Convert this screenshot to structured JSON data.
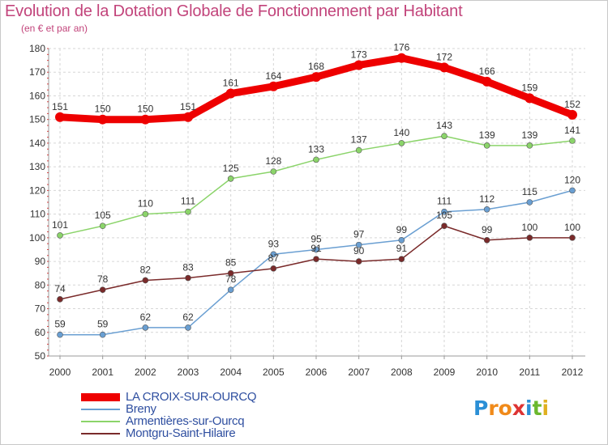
{
  "header": {
    "title": "Evolution de la Dotation Globale de Fonctionnement par Habitant",
    "subtitle": "(en € et par an)"
  },
  "logo": {
    "letters": [
      "P",
      "r",
      "o",
      "x",
      "i",
      "t",
      "i"
    ],
    "colors": [
      "#2b8fd6",
      "#f08a1a",
      "#f08a1a",
      "#d33",
      "#2b8fd6",
      "#6bb82e",
      "#e0b020"
    ]
  },
  "chart_data": {
    "type": "line",
    "x": [
      2000,
      2001,
      2002,
      2003,
      2004,
      2005,
      2006,
      2007,
      2008,
      2009,
      2010,
      2011,
      2012
    ],
    "xlabel": "",
    "ylabel": "",
    "ylim": [
      50,
      180
    ],
    "yticks": [
      50,
      60,
      70,
      80,
      90,
      100,
      110,
      120,
      130,
      140,
      150,
      160,
      170,
      180
    ],
    "grid": "horizontal dashed",
    "legend": "bottom-left",
    "series": [
      {
        "name": "LA CROIX-SUR-OURCQ",
        "color": "#ee0000",
        "values": [
          151,
          150,
          150,
          151,
          161,
          164,
          168,
          173,
          176,
          172,
          166,
          159,
          152
        ]
      },
      {
        "name": "Breny",
        "color": "#6a9fd2",
        "values": [
          59,
          59,
          62,
          62,
          78,
          93,
          95,
          97,
          99,
          111,
          112,
          115,
          120
        ]
      },
      {
        "name": "Armentières-sur-Ourcq",
        "color": "#8bd46a",
        "values": [
          101,
          105,
          110,
          111,
          125,
          128,
          133,
          137,
          140,
          143,
          139,
          139,
          141
        ]
      },
      {
        "name": "Montgru-Saint-Hilaire",
        "color": "#7a2a2a",
        "values": [
          74,
          78,
          82,
          83,
          85,
          87,
          91,
          90,
          91,
          105,
          99,
          100,
          100
        ]
      }
    ],
    "point_labels": [
      [
        "151",
        "150",
        "150",
        "151",
        "161",
        "164",
        "168",
        "173",
        "176",
        "172",
        "166",
        "159",
        "152"
      ],
      [
        "59",
        "59",
        "62",
        "62",
        "78",
        "93",
        "95",
        "97",
        "99",
        "111",
        "112",
        "115",
        "120"
      ],
      [
        "101",
        "105",
        "110",
        "111",
        "125",
        "128",
        "133",
        "137",
        "140",
        "143",
        "139",
        "139",
        "141"
      ],
      [
        "74",
        "78",
        "82",
        "83",
        "85",
        "87",
        "91",
        "90",
        "91",
        "105",
        "99",
        "100",
        "100"
      ]
    ]
  }
}
